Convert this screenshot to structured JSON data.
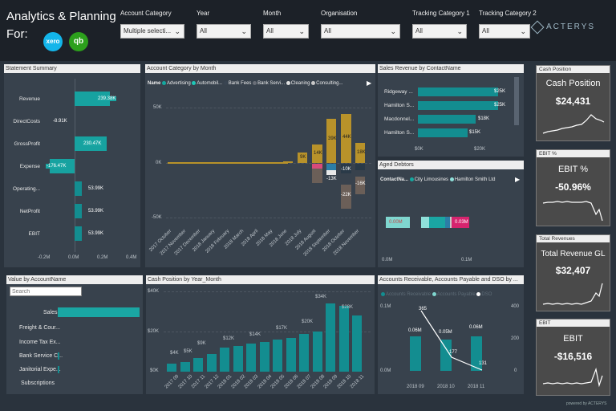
{
  "header": {
    "title_line1": "Analytics & Planning",
    "title_line2": "For:",
    "xero_logo": "xero",
    "qb_logo": "qb",
    "brand": "ACTERYS",
    "footer_brand": "powered by ACTERYS"
  },
  "filters": [
    {
      "label": "Account Category",
      "value": "Multiple selecti..."
    },
    {
      "label": "Year",
      "value": "All"
    },
    {
      "label": "Month",
      "value": "All"
    },
    {
      "label": "Organisation",
      "value": "All"
    },
    {
      "label": "Tracking Category 1",
      "value": "All"
    },
    {
      "label": "Tracking Category 2",
      "value": "All"
    }
  ],
  "statement_summary": {
    "title": "Statement Summary",
    "rows": [
      {
        "name": "Revenue",
        "label": "239.38K"
      },
      {
        "name": "DirectCosts",
        "label": "-8.91K"
      },
      {
        "name": "GrossProfit",
        "label": "230.47K"
      },
      {
        "name": "Expense",
        "label": "-176.47K"
      },
      {
        "name": "Operating...",
        "label": "53.99K"
      },
      {
        "name": "NetProfit",
        "label": "53.99K"
      },
      {
        "name": "EBIT",
        "label": "53.99K"
      }
    ],
    "ticks": [
      "-0.2M",
      "0.0M",
      "0.2M",
      "0.4M"
    ]
  },
  "account_category": {
    "title": "Account Category by Month",
    "legend_name": "Name",
    "legend": [
      {
        "name": "Advertising",
        "color": "#15a8a0"
      },
      {
        "name": "Automobil...",
        "color": "#1fc7b7"
      },
      {
        "name": "Bank Fees",
        "color": "#3a4552"
      },
      {
        "name": "Bank Servi...",
        "color": "#6a6f78"
      },
      {
        "name": "Cleaning",
        "color": "#e0e0e0"
      },
      {
        "name": "Consulting...",
        "color": "#c9c9c9"
      }
    ],
    "yticks": [
      "50K",
      "0K",
      "-50K"
    ],
    "months": [
      "2017 October",
      "2017 November",
      "2017 December",
      "2018 January",
      "2018 February",
      "2018 March",
      "2018 April",
      "2018 May",
      "2018 June",
      "2018 July",
      "2018 August",
      "2018 September",
      "2018 October",
      "2018 November"
    ],
    "labels": [
      "9K",
      "14K",
      "39K",
      "44K",
      "18K",
      "-10K",
      "-13K",
      "-16K",
      "-22K"
    ]
  },
  "sales_revenue": {
    "title": "Sales Revenue by ContactName",
    "rows": [
      {
        "name": "Ridgeway ...",
        "label": "$25K"
      },
      {
        "name": "Hamilton S...",
        "label": "$25K"
      },
      {
        "name": "Macdonnel...",
        "label": "$18K"
      },
      {
        "name": "Hamilton S...",
        "label": "$15K"
      }
    ],
    "ticks": [
      "$0K",
      "$20K"
    ]
  },
  "aged_debtors": {
    "title": "Aged Debtors",
    "legend_name": "ContactNa...",
    "legend": [
      {
        "name": "City Limousines",
        "color": "#15a8a0"
      },
      {
        "name": "Hamilton Smith Ltd",
        "color": "#8fe0da"
      }
    ],
    "bar_label": "0.03M",
    "ticks": [
      "0.0M",
      "0.1M"
    ],
    "left_label": "0.00M"
  },
  "value_by_account": {
    "title": "Value by AccountName",
    "search_placeholder": "Search",
    "items": [
      "Sales",
      "Freight & Cour...",
      "Income Tax Ex...",
      "Bank Service C...",
      "Janitorial Expe...",
      "Subscriptions"
    ]
  },
  "cash_position_chart": {
    "title": "Cash Position by Year_Month",
    "yticks": [
      "$40K",
      "$20K",
      "$0K"
    ],
    "months": [
      "2017 09",
      "2017 10",
      "2017 11",
      "2017 12",
      "2018 01",
      "2018 02",
      "2018 03",
      "2018 04",
      "2018 05",
      "2018 06",
      "2018 07",
      "2018 08",
      "2018 09",
      "2018 10",
      "2018 11"
    ],
    "labels": [
      "$4K",
      "$5K",
      "$9K",
      "$12K",
      "$14K",
      "$17K",
      "$20K",
      "$34K",
      "$28K"
    ]
  },
  "ar_ap": {
    "title": "Accounts Receivable, Accounts Payable and DSO by ...",
    "legend": [
      {
        "name": "Accounts Receivable",
        "color": "#138d90"
      },
      {
        "name": "Accounts Payable",
        "color": "#7fd6cf"
      },
      {
        "name": "DSO",
        "color": "#ffffff"
      }
    ],
    "left_ticks": [
      "0.1M",
      "0.0M"
    ],
    "right_ticks": [
      "400",
      "200",
      "0"
    ],
    "months": [
      "2018 09",
      "2018 10",
      "2018 11"
    ],
    "bar_labels": [
      "0.06M",
      "0.05M",
      "0.06M"
    ],
    "dso_labels": [
      "365",
      "177",
      "131"
    ]
  },
  "cards": [
    {
      "header": "Cash Position",
      "title": "Cash Position",
      "value": "$24,431"
    },
    {
      "header": "EBIT %",
      "title": "EBIT %",
      "value": "-50.96%"
    },
    {
      "header": "Total Revenues",
      "title": "Total Revenue GL",
      "value": "$32,407"
    },
    {
      "header": "EBIT",
      "title": "EBIT",
      "value": "-$16,516"
    }
  ],
  "chart_data": [
    {
      "type": "bar",
      "title": "Statement Summary",
      "categories": [
        "Revenue",
        "DirectCosts",
        "GrossProfit",
        "Expense",
        "Operating...",
        "NetProfit",
        "EBIT"
      ],
      "values": [
        239.38,
        -8.91,
        230.47,
        -176.47,
        53.99,
        53.99,
        53.99
      ],
      "unit": "K",
      "xlim": [
        -0.2,
        0.4
      ]
    },
    {
      "type": "bar",
      "title": "Cash Position by Year_Month",
      "categories": [
        "2017 09",
        "2017 10",
        "2017 11",
        "2017 12",
        "2018 01",
        "2018 02",
        "2018 03",
        "2018 04",
        "2018 05",
        "2018 06",
        "2018 07",
        "2018 08",
        "2018 09",
        "2018 10",
        "2018 11"
      ],
      "values": [
        4,
        5,
        7,
        9,
        12,
        13,
        14,
        15,
        16,
        17,
        19,
        20,
        34,
        33,
        28
      ],
      "unit": "$K",
      "ylim": [
        0,
        40
      ]
    },
    {
      "type": "bar",
      "title": "Sales Revenue by ContactName",
      "categories": [
        "Ridgeway ...",
        "Hamilton S...",
        "Macdonnel...",
        "Hamilton S..."
      ],
      "values": [
        25,
        25,
        18,
        15
      ],
      "unit": "$K"
    },
    {
      "type": "bar",
      "title": "Accounts Receivable, Accounts Payable and DSO by ...",
      "categories": [
        "2018 09",
        "2018 10",
        "2018 11"
      ],
      "series": [
        {
          "name": "Accounts Receivable",
          "values": [
            0.06,
            0.05,
            0.06
          ]
        },
        {
          "name": "DSO",
          "values": [
            365,
            177,
            131
          ]
        }
      ]
    }
  ]
}
